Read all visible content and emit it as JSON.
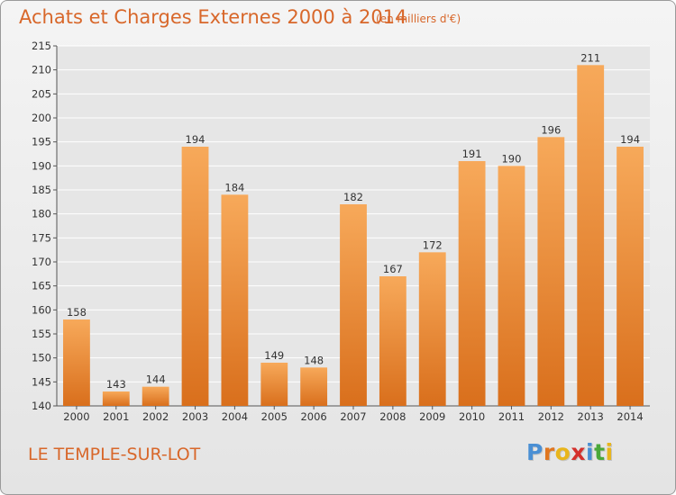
{
  "header": {
    "title": "Achats et Charges Externes 2000 à 2014",
    "subtitle": "(en milliers d'€)"
  },
  "footer": {
    "place": "LE TEMPLE-SUR-LOT",
    "logo_text": "Proxiti",
    "logo_letter_colors": [
      "#4a8fd4",
      "#e0761f",
      "#e8b51c",
      "#d4302c",
      "#4a8fd4",
      "#4aa83a",
      "#e8b51c"
    ]
  },
  "chart_data": {
    "type": "bar",
    "categories": [
      "2000",
      "2001",
      "2002",
      "2003",
      "2004",
      "2005",
      "2006",
      "2007",
      "2008",
      "2009",
      "2010",
      "2011",
      "2012",
      "2013",
      "2014"
    ],
    "values": [
      158,
      143,
      144,
      194,
      184,
      149,
      148,
      182,
      167,
      172,
      191,
      190,
      196,
      211,
      194
    ],
    "ylim": [
      140,
      215
    ],
    "yticks": [
      140,
      145,
      150,
      155,
      160,
      165,
      170,
      175,
      180,
      185,
      190,
      195,
      200,
      205,
      210,
      215
    ],
    "grid": true,
    "bar_color_light": "#f7a95a",
    "bar_color_dark": "#d96f1c"
  }
}
